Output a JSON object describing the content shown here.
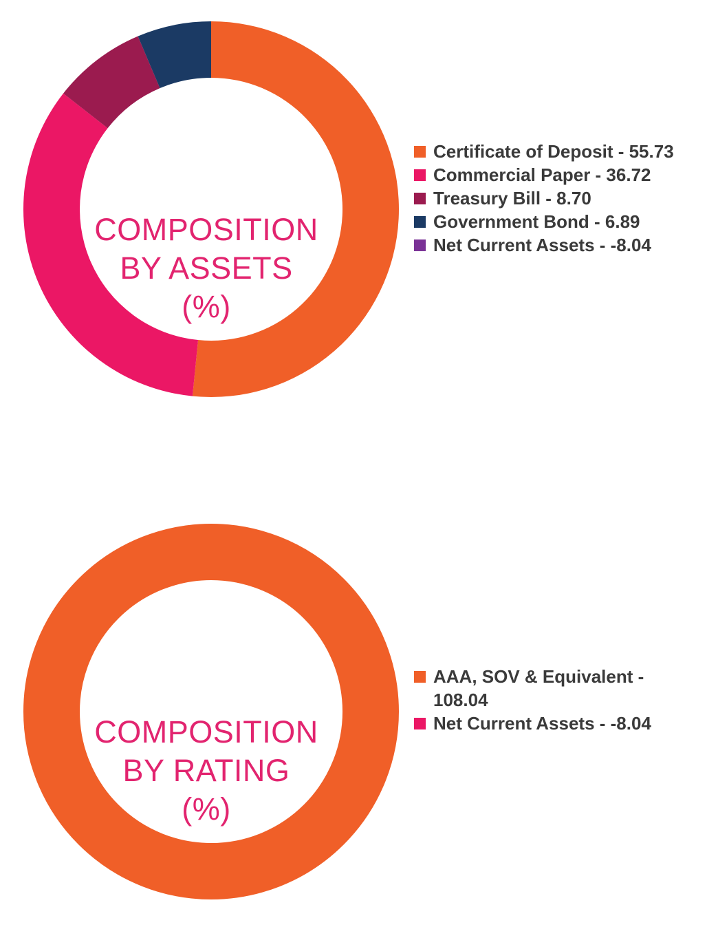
{
  "chart_data": [
    {
      "type": "pie",
      "title_lines": [
        "COMPOSITION",
        "BY ASSETS",
        "(%)"
      ],
      "categories": [
        "Certificate of Deposit",
        "Commercial Paper",
        "Treasury Bill",
        "Government Bond",
        "Net Current Assets"
      ],
      "values": [
        55.73,
        36.72,
        8.7,
        6.89,
        -8.04
      ],
      "colors": [
        "#f05f28",
        "#eb1765",
        "#9b1b4f",
        "#1b3a64",
        "#7a3296"
      ],
      "legend_labels": [
        "Certificate of Deposit - 55.73",
        "Commercial Paper - 36.72",
        "Treasury Bill - 8.70",
        "Government Bond - 6.89",
        "Net Current Assets - -8.04"
      ],
      "legend_position": "right"
    },
    {
      "type": "pie",
      "title_lines": [
        "COMPOSITION",
        "BY RATING",
        "(%)"
      ],
      "categories": [
        "AAA, SOV & Equivalent",
        "Net Current Assets"
      ],
      "values": [
        108.04,
        -8.04
      ],
      "colors": [
        "#f05f28",
        "#eb1765"
      ],
      "legend_labels": [
        "AAA, SOV & Equivalent - 108.04",
        "Net Current Assets - -8.04"
      ],
      "legend_position": "right"
    }
  ]
}
